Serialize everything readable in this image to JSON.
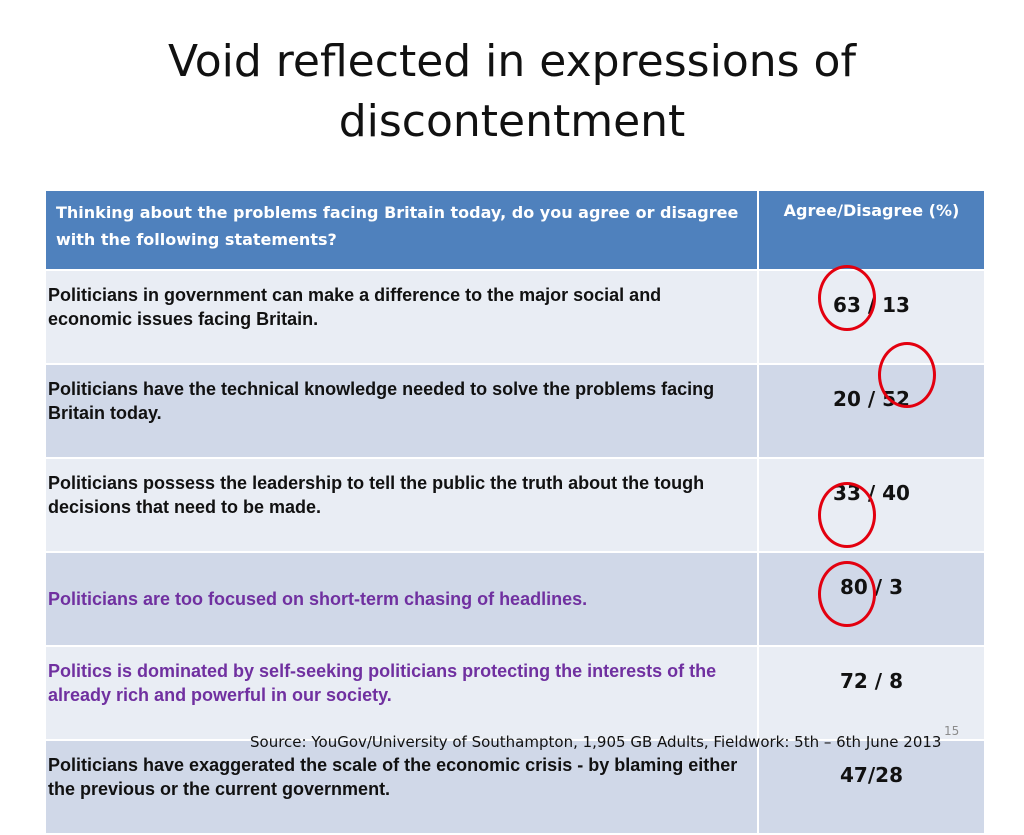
{
  "slide": {
    "title": "Void reflected in expressions of discontentment",
    "page_number": "15",
    "source": "Source: YouGov/University of Southampton, 1,905 GB Adults, Fieldwork: 5th – 6th June 2013"
  },
  "table": {
    "header": {
      "question": "Thinking about the problems facing Britain today, do you agree or disagree with the following statements?",
      "value_label": "Agree/Disagree (%)"
    },
    "rows": [
      {
        "statement": "Politicians in government can make a difference to the major social and economic issues facing Britain.",
        "value": "63 / 13",
        "agree": 63,
        "disagree": 13,
        "circled": "agree",
        "text_color": "#111111"
      },
      {
        "statement": "Politicians have the technical knowledge needed to solve the problems facing Britain today.",
        "value": "20 / 52",
        "agree": 20,
        "disagree": 52,
        "circled": "disagree",
        "text_color": "#111111"
      },
      {
        "statement": "Politicians possess the leadership to tell the public the truth about the tough decisions that need to be made.",
        "value": "33 / 40",
        "agree": 33,
        "disagree": 40,
        "circled": "none",
        "text_color": "#111111"
      },
      {
        "statement": "Politicians are too focused on short-term chasing of headlines.",
        "value": "80 / 3",
        "agree": 80,
        "disagree": 3,
        "circled": "agree",
        "text_color": "#7030a0"
      },
      {
        "statement": "Politics is dominated by self-seeking politicians protecting the interests of the already rich and powerful in our society.",
        "value": "72 / 8",
        "agree": 72,
        "disagree": 8,
        "circled": "agree",
        "text_color": "#7030a0"
      },
      {
        "statement": "Politicians have exaggerated the scale of the economic crisis - by blaming either the previous or the current government.",
        "value": "47/28",
        "agree": 47,
        "disagree": 28,
        "circled": "none",
        "text_color": "#111111"
      }
    ]
  },
  "colors": {
    "header_bg": "#4f81bd",
    "row_odd_bg": "#e9edf4",
    "row_even_bg": "#d0d8e8",
    "highlight_text": "#7030a0",
    "circle": "#e3000f"
  }
}
